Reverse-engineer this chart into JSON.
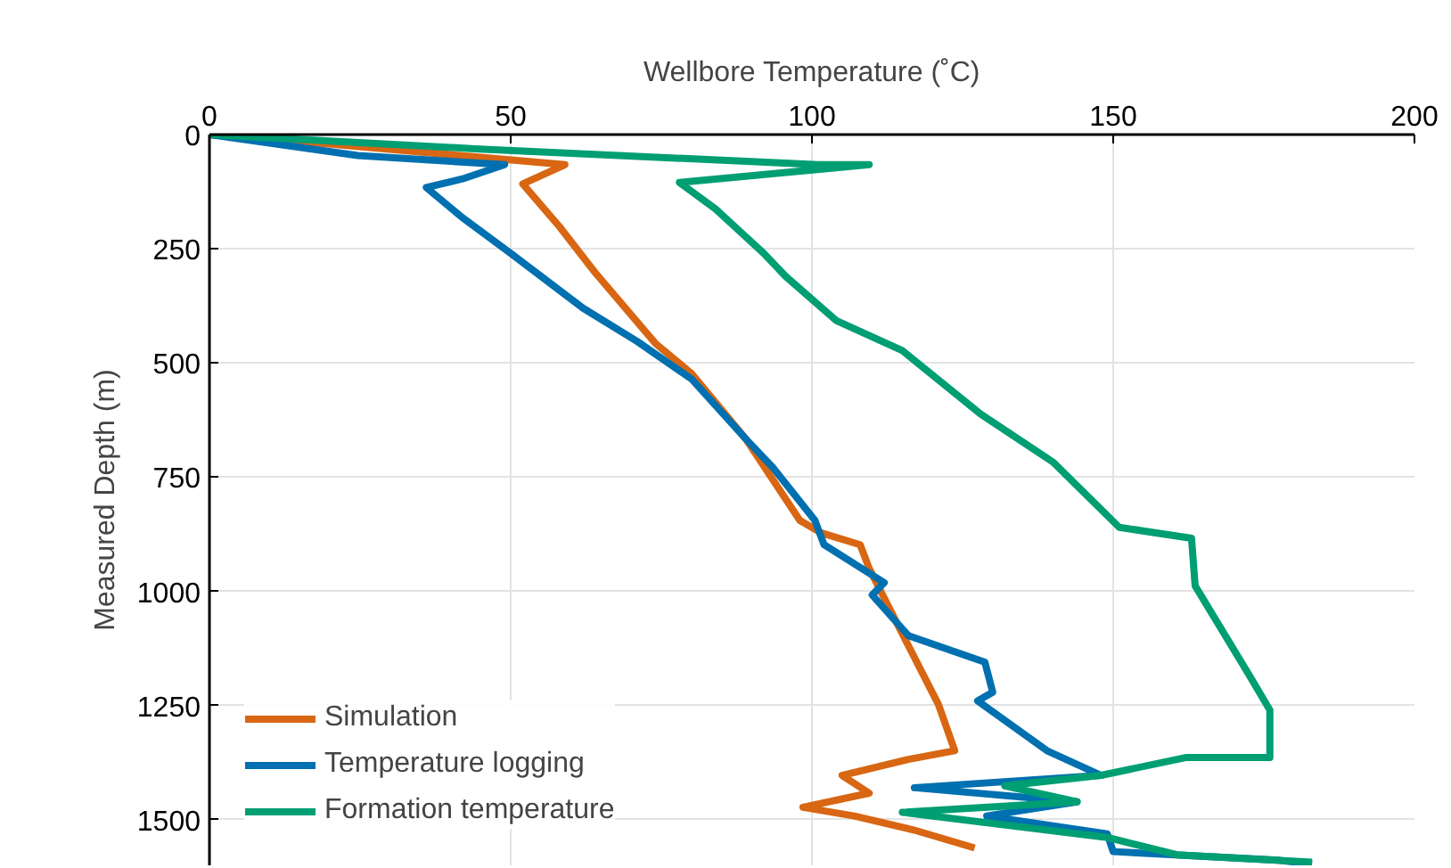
{
  "chart_data": {
    "type": "line",
    "xlabel": "Wellbore Temperature (˚C)",
    "ylabel": "Measured Depth (m)",
    "xlim": [
      0,
      200
    ],
    "xticks": [
      0,
      50,
      100,
      150,
      200
    ],
    "ylim": [
      1600,
      0
    ],
    "yticks": [
      0,
      250,
      500,
      750,
      1000,
      1250,
      1500
    ],
    "grid": true,
    "legend": "bottom left",
    "line_style": "solid",
    "marker": "none",
    "series": [
      {
        "name": "Simulation",
        "color": "#d86613",
        "x": [
          0,
          12.7,
          59,
          52,
          58,
          64,
          74,
          80,
          89,
          98,
          101.5,
          108,
          109.5,
          115,
          121,
          123.7,
          116,
          105,
          109.5,
          98.5,
          107,
          117,
          127
        ],
        "values": [
          0,
          12,
          66,
          108,
          200,
          302,
          457,
          523,
          666,
          845,
          872,
          898,
          950,
          1093,
          1248,
          1349,
          1368,
          1403,
          1442,
          1473,
          1492,
          1523,
          1562
        ]
      },
      {
        "name": "Temperature logging",
        "color": "#0070b0",
        "x": [
          0,
          24.6,
          49,
          42,
          36,
          42,
          50,
          62,
          71,
          80,
          89,
          93.5,
          100.5,
          102,
          112,
          110,
          116,
          128.7,
          130,
          127.5,
          139,
          148,
          117,
          144,
          129,
          149,
          150,
          177.5,
          183
        ],
        "values": [
          0,
          46,
          66,
          97,
          116,
          182,
          260,
          380,
          453,
          535,
          666,
          729,
          845,
          898,
          981,
          1008,
          1097,
          1155,
          1221,
          1240,
          1349,
          1403,
          1430,
          1461,
          1492,
          1531,
          1570,
          1589,
          1597
        ]
      },
      {
        "name": "Formation temperature",
        "color": "#009e73",
        "x": [
          0,
          44,
          101,
          109.5,
          78,
          84,
          92,
          95.6,
          104,
          115,
          128,
          140,
          151,
          163,
          163.6,
          172.5,
          176,
          176,
          162,
          148,
          132,
          144,
          115,
          149,
          160.6,
          183
        ],
        "values": [
          0,
          31,
          66,
          66,
          105,
          163,
          260,
          310,
          407,
          473,
          612,
          717,
          860,
          884,
          988,
          1182,
          1260,
          1364,
          1364,
          1403,
          1426,
          1461,
          1484,
          1539,
          1577,
          1593
        ]
      }
    ]
  }
}
